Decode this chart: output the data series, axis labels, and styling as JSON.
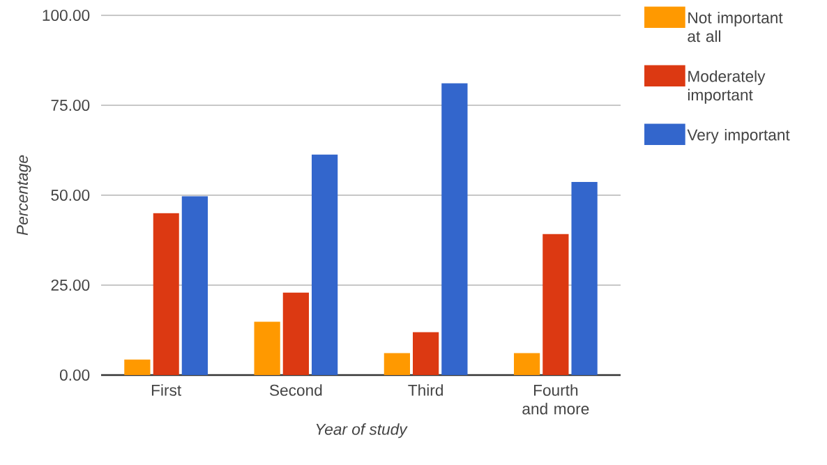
{
  "chart_data": {
    "type": "bar",
    "xlabel": "Year of study",
    "ylabel": "Percentage",
    "categories": [
      "First",
      "Second",
      "Third",
      "Fourth and more"
    ],
    "series": [
      {
        "name": "Not important at all",
        "color": "#ff9900",
        "values": [
          4.3,
          14.8,
          6.1,
          6.1
        ]
      },
      {
        "name": "Moderately important",
        "color": "#dc3912",
        "values": [
          45.0,
          22.9,
          11.9,
          39.2
        ]
      },
      {
        "name": "Very important",
        "color": "#3366cc",
        "values": [
          49.7,
          61.3,
          81.1,
          53.7
        ]
      }
    ],
    "ylim": [
      0,
      100
    ],
    "yticks": [
      {
        "value": 0,
        "label": "0.00"
      },
      {
        "value": 25,
        "label": "25.00"
      },
      {
        "value": 50,
        "label": "50.00"
      },
      {
        "value": 75,
        "label": "75.00"
      },
      {
        "value": 100,
        "label": "100.00"
      }
    ],
    "grid": "y",
    "legend": "top right"
  }
}
